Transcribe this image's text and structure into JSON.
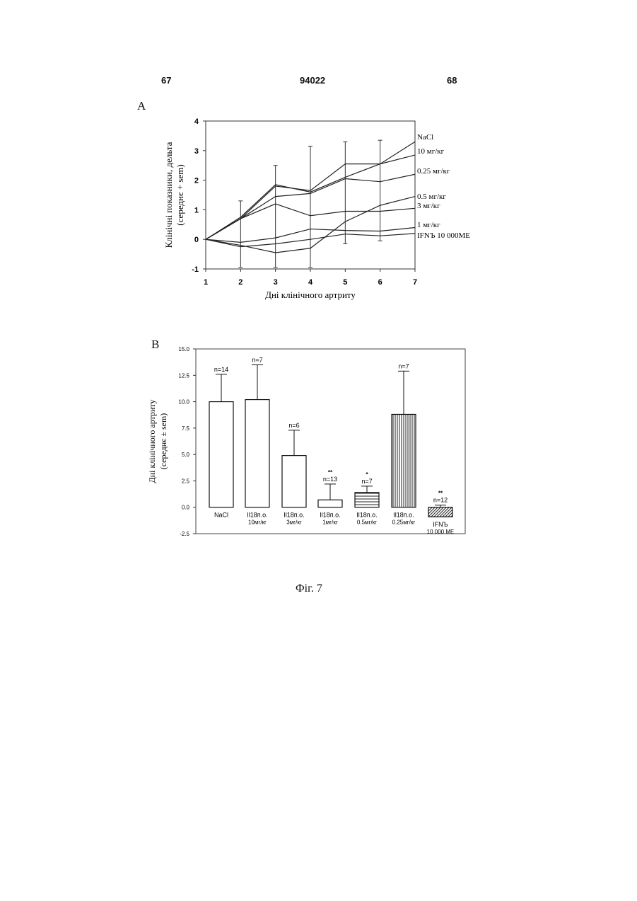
{
  "page": {
    "left_number": "67",
    "center_number": "94022",
    "right_number": "68",
    "caption": "Фіг. 7"
  },
  "chart_data": [
    {
      "panel": "A",
      "type": "line",
      "xlabel": "Дні клінічного артриту",
      "ylabel": "Клінічні показники, дельта",
      "ylabel2": "(середнє + sem)",
      "x": [
        1,
        2,
        3,
        4,
        5,
        6,
        7
      ],
      "xlim": [
        1,
        7
      ],
      "ylim": [
        -1,
        4
      ],
      "yticks": [
        "-1",
        "0",
        "1",
        "2",
        "3",
        "4"
      ],
      "xticks": [
        "1",
        "2",
        "3",
        "4",
        "5",
        "6",
        "7"
      ],
      "series": [
        {
          "name": "NaCl",
          "values": [
            0,
            0.75,
            1.85,
            1.6,
            2.1,
            2.55,
            3.3
          ]
        },
        {
          "name": "10 мг/кг",
          "values": [
            0,
            0.7,
            1.8,
            1.65,
            2.55,
            2.55,
            2.85
          ]
        },
        {
          "name": "0.25 мг/кг",
          "values": [
            0,
            0.7,
            1.45,
            1.55,
            2.05,
            1.95,
            2.2
          ]
        },
        {
          "name": "0.5 мг/кг",
          "values": [
            0,
            -0.2,
            -0.45,
            -0.3,
            0.6,
            1.15,
            1.45
          ]
        },
        {
          "name": "3 мг/кг",
          "values": [
            0,
            0.7,
            1.2,
            0.8,
            0.95,
            0.95,
            1.05
          ]
        },
        {
          "name": "1 мг/кг",
          "values": [
            0,
            -0.1,
            0.05,
            0.35,
            0.3,
            0.28,
            0.4
          ]
        },
        {
          "name": "IFNЪ 10 000МЕ",
          "values": [
            0,
            -0.25,
            -0.15,
            0,
            0.18,
            0.12,
            0.2
          ]
        }
      ],
      "error_bars": [
        {
          "x": 2,
          "low": -0.95,
          "high": 1.3
        },
        {
          "x": 3,
          "low": -0.95,
          "high": 2.5
        },
        {
          "x": 4,
          "low": -0.95,
          "high": 3.15
        },
        {
          "x": 5,
          "low": -0.15,
          "high": 3.3
        },
        {
          "x": 6,
          "low": -0.05,
          "high": 3.35
        }
      ]
    },
    {
      "panel": "B",
      "type": "bar",
      "ylabel": "Дні клінічного артриту",
      "ylabel2": "(середнє ± sem)",
      "ylim": [
        -2.5,
        15.0
      ],
      "yticks": [
        "-2.5",
        "0.0",
        "2.5",
        "5.0",
        "7.5",
        "10.0",
        "12.5",
        "15.0"
      ],
      "bars": [
        {
          "label1": "NaCl",
          "label2": "",
          "value": 10.0,
          "error": 2.6,
          "n": "n=14",
          "sig": "",
          "pattern": "none"
        },
        {
          "label1": "Il18п.о.",
          "label2": "10мг/кг",
          "value": 10.2,
          "error": 3.3,
          "n": "n=7",
          "sig": "",
          "pattern": "none"
        },
        {
          "label1": "Il18п.о.",
          "label2": "3мг/кг",
          "value": 4.9,
          "error": 2.4,
          "n": "n=6",
          "sig": "",
          "pattern": "none"
        },
        {
          "label1": "Il18п.о.",
          "label2": "1мг/кг",
          "value": 0.7,
          "error": 1.5,
          "n": "n=13",
          "sig": "**",
          "pattern": "none"
        },
        {
          "label1": "Il18п.о.",
          "label2": "0.5мг/кг",
          "value": 1.4,
          "error": 0.6,
          "n": "n=7",
          "sig": "*",
          "pattern": "horizontal"
        },
        {
          "label1": "Il18п.о.",
          "label2": "0.25мг/кг",
          "value": 8.8,
          "error": 4.1,
          "n": "n=7",
          "sig": "",
          "pattern": "vertical"
        },
        {
          "label1": "IFNЪ",
          "label2": "10 000 МЕ",
          "value": -0.9,
          "error": 1.1,
          "n": "n=12",
          "sig": "**",
          "pattern": "diagonal"
        }
      ]
    }
  ]
}
